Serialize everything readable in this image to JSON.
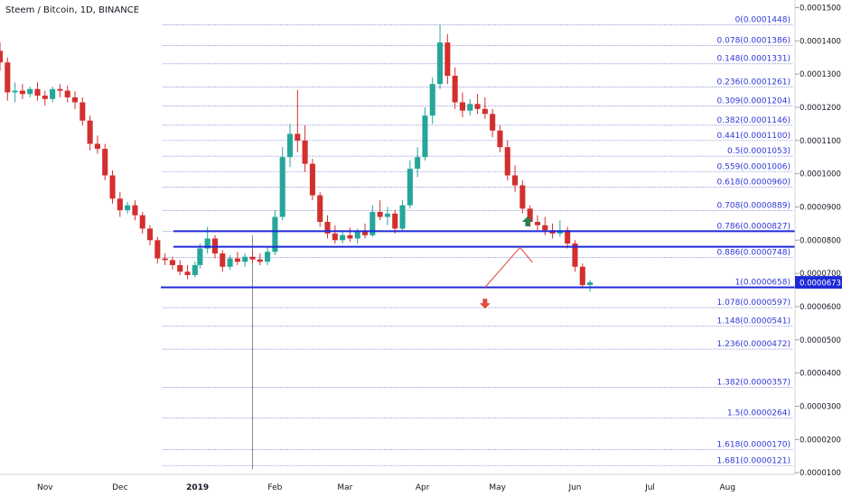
{
  "header": {
    "title": "Steem / Bitcoin, 1D, BINANCE"
  },
  "chart_data": {
    "type": "candlestick",
    "symbol": "Steem / Bitcoin",
    "interval": "1D",
    "exchange": "BINANCE",
    "ylim": [
      9.5e-06,
      0.0001523
    ],
    "y_ticks": [
      "0.0001500",
      "0.0001400",
      "0.0001300",
      "0.0001200",
      "0.0001100",
      "0.0001000",
      "0.0000900",
      "0.0000800",
      "0.0000700",
      "0.0000600",
      "0.0000500",
      "0.0000400",
      "0.0000300",
      "0.0000200",
      "0.0000100"
    ],
    "y_tick_values": [
      0.00015,
      0.00014,
      0.00013,
      0.00012,
      0.00011,
      0.0001,
      9e-05,
      8e-05,
      7e-05,
      6e-05,
      5e-05,
      4e-05,
      3e-05,
      2e-05,
      1e-05
    ],
    "x_labels": [
      "Nov",
      "Dec",
      "2019",
      "Feb",
      "Mar",
      "Apr",
      "May",
      "Jun",
      "Jul",
      "Aug"
    ],
    "x_label_dates": [
      "2018-11-01",
      "2018-12-01",
      "2019-01-01",
      "2019-02-01",
      "2019-03-01",
      "2019-04-01",
      "2019-05-01",
      "2019-06-01",
      "2019-07-01",
      "2019-08-01"
    ],
    "x_range": [
      "2018-10-14",
      "2019-08-28"
    ],
    "current_price": "0.0000673",
    "current_price_value": 6.73e-05,
    "fib_levels": [
      {
        "label": "0(0.0001448)",
        "value": 0.0001448
      },
      {
        "label": "0.078(0.0001386)",
        "value": 0.0001386
      },
      {
        "label": "0.148(0.0001331)",
        "value": 0.0001331
      },
      {
        "label": "0.236(0.0001261)",
        "value": 0.0001261
      },
      {
        "label": "0.309(0.0001204)",
        "value": 0.0001204
      },
      {
        "label": "0.382(0.0001146)",
        "value": 0.0001146
      },
      {
        "label": "0.441(0.0001100)",
        "value": 0.00011
      },
      {
        "label": "0.5(0.0001053)",
        "value": 0.0001053
      },
      {
        "label": "0.559(0.0001006)",
        "value": 0.0001006
      },
      {
        "label": "0.618(0.0000960)",
        "value": 9.6e-05
      },
      {
        "label": "0.708(0.0000889)",
        "value": 8.89e-05
      },
      {
        "label": "0.786(0.0000827)",
        "value": 8.27e-05
      },
      {
        "label": "0.886(0.0000748)",
        "value": 7.48e-05
      },
      {
        "label": "1(0.0000658)",
        "value": 6.58e-05
      },
      {
        "label": "1.078(0.0000597)",
        "value": 5.97e-05
      },
      {
        "label": "1.148(0.0000541)",
        "value": 5.41e-05
      },
      {
        "label": "1.236(0.0000472)",
        "value": 4.72e-05
      },
      {
        "label": "1.382(0.0000357)",
        "value": 3.57e-05
      },
      {
        "label": "1.5(0.0000264)",
        "value": 2.64e-05
      },
      {
        "label": "1.618(0.0000170)",
        "value": 1.7e-05
      },
      {
        "label": "1.681(0.0000121)",
        "value": 1.21e-05
      }
    ],
    "horizontal_levels": [
      8.27e-05,
      7.8e-05,
      6.58e-05
    ],
    "vertical_marker_date": "2019-01-23",
    "projection_path": [
      {
        "date": "2019-04-26",
        "value": 6.58e-05
      },
      {
        "date": "2019-05-10",
        "value": 7.78e-05
      },
      {
        "date": "2019-05-15",
        "value": 7.33e-05
      }
    ],
    "arrows": [
      {
        "direction": "up",
        "date": "2019-05-13",
        "value": 8.55e-05,
        "color": "#2e7d4f"
      },
      {
        "direction": "down",
        "date": "2019-04-26",
        "value": 6.1e-05,
        "color": "#e04b3a"
      }
    ],
    "colors": {
      "up": "#26a69a",
      "down": "#d32f2f",
      "fib_line": "#8a90d8",
      "fib_text": "#2f37d6",
      "level_line": "#1f2ad8",
      "price_badge": "#1f2ad8",
      "projection": "#e04b3a"
    },
    "ohlc": [
      [
        "2018-10-14",
        0.000137,
        0.0001395,
        0.000131,
        0.0001335
      ],
      [
        "2018-10-17",
        0.0001335,
        0.000135,
        0.000122,
        0.0001245
      ],
      [
        "2018-10-20",
        0.0001245,
        0.0001275,
        0.0001215,
        0.000125
      ],
      [
        "2018-10-23",
        0.000125,
        0.000127,
        0.0001225,
        0.000124
      ],
      [
        "2018-10-26",
        0.000124,
        0.0001262,
        0.000123,
        0.0001255
      ],
      [
        "2018-10-29",
        0.0001255,
        0.0001275,
        0.000122,
        0.0001235
      ],
      [
        "2018-11-01",
        0.0001235,
        0.000125,
        0.0001205,
        0.0001225
      ],
      [
        "2018-11-04",
        0.0001225,
        0.0001262,
        0.0001215,
        0.0001255
      ],
      [
        "2018-11-07",
        0.0001255,
        0.000127,
        0.000123,
        0.000125
      ],
      [
        "2018-11-10",
        0.000125,
        0.0001265,
        0.0001215,
        0.000123
      ],
      [
        "2018-11-13",
        0.000123,
        0.0001248,
        0.0001195,
        0.0001215
      ],
      [
        "2018-11-16",
        0.0001215,
        0.000123,
        0.0001145,
        0.000116
      ],
      [
        "2018-11-19",
        0.000116,
        0.0001175,
        0.000107,
        0.000109
      ],
      [
        "2018-11-22",
        0.000109,
        0.0001115,
        0.000106,
        0.0001075
      ],
      [
        "2018-11-25",
        0.0001075,
        0.000109,
        9.8e-05,
        9.95e-05
      ],
      [
        "2018-11-28",
        9.95e-05,
        0.000101,
        9.1e-05,
        9.25e-05
      ],
      [
        "2018-12-01",
        9.25e-05,
        9.45e-05,
        8.7e-05,
        8.9e-05
      ],
      [
        "2018-12-04",
        8.9e-05,
        9.15e-05,
        8.8e-05,
        9.05e-05
      ],
      [
        "2018-12-07",
        9.05e-05,
        9.2e-05,
        8.6e-05,
        8.75e-05
      ],
      [
        "2018-12-10",
        8.75e-05,
        8.85e-05,
        8.2e-05,
        8.35e-05
      ],
      [
        "2018-12-13",
        8.35e-05,
        8.45e-05,
        7.85e-05,
        8e-05
      ],
      [
        "2018-12-16",
        8e-05,
        8.1e-05,
        7.3e-05,
        7.45e-05
      ],
      [
        "2018-12-19",
        7.45e-05,
        7.6e-05,
        7.25e-05,
        7.4e-05
      ],
      [
        "2018-12-22",
        7.4e-05,
        7.5e-05,
        7.12e-05,
        7.25e-05
      ],
      [
        "2018-12-25",
        7.25e-05,
        7.4e-05,
        6.95e-05,
        7.05e-05
      ],
      [
        "2018-12-28",
        7.05e-05,
        7.25e-05,
        6.82e-05,
        6.95e-05
      ],
      [
        "2018-12-31",
        6.95e-05,
        7.35e-05,
        6.88e-05,
        7.25e-05
      ],
      [
        "2019-01-02",
        7.25e-05,
        7.9e-05,
        7.15e-05,
        7.75e-05
      ],
      [
        "2019-01-05",
        7.75e-05,
        8.4e-05,
        7.6e-05,
        8.05e-05
      ],
      [
        "2019-01-08",
        8.05e-05,
        8.15e-05,
        7.45e-05,
        7.6e-05
      ],
      [
        "2019-01-11",
        7.6e-05,
        7.7e-05,
        7.05e-05,
        7.2e-05
      ],
      [
        "2019-01-14",
        7.2e-05,
        7.55e-05,
        7.1e-05,
        7.45e-05
      ],
      [
        "2019-01-17",
        7.45e-05,
        7.65e-05,
        7.25e-05,
        7.35e-05
      ],
      [
        "2019-01-20",
        7.35e-05,
        7.6e-05,
        7.2e-05,
        7.5e-05
      ],
      [
        "2019-01-23",
        7.5e-05,
        7.7e-05,
        7.3e-05,
        7.42e-05
      ],
      [
        "2019-01-26",
        7.42e-05,
        7.6e-05,
        7.25e-05,
        7.35e-05
      ],
      [
        "2019-01-29",
        7.35e-05,
        7.8e-05,
        7.25e-05,
        7.65e-05
      ],
      [
        "2019-02-01",
        7.65e-05,
        8.9e-05,
        7.55e-05,
        8.7e-05
      ],
      [
        "2019-02-04",
        8.7e-05,
        0.000108,
        8.6e-05,
        0.000105
      ],
      [
        "2019-02-07",
        0.000105,
        0.000115,
        0.000102,
        0.000112
      ],
      [
        "2019-02-10",
        0.000112,
        0.0001252,
        0.0001065,
        0.00011
      ],
      [
        "2019-02-13",
        0.00011,
        0.0001145,
        0.0001005,
        0.000103
      ],
      [
        "2019-02-16",
        0.000103,
        0.0001045,
        9.2e-05,
        9.35e-05
      ],
      [
        "2019-02-19",
        9.35e-05,
        9.45e-05,
        8.4e-05,
        8.55e-05
      ],
      [
        "2019-02-22",
        8.55e-05,
        8.75e-05,
        8.05e-05,
        8.2e-05
      ],
      [
        "2019-02-25",
        8.2e-05,
        8.45e-05,
        7.9e-05,
        8e-05
      ],
      [
        "2019-02-28",
        8e-05,
        8.3e-05,
        7.9e-05,
        8.15e-05
      ],
      [
        "2019-03-03",
        8.15e-05,
        8.38e-05,
        7.95e-05,
        8.05e-05
      ],
      [
        "2019-03-06",
        8.05e-05,
        8.35e-05,
        7.9e-05,
        8.25e-05
      ],
      [
        "2019-03-09",
        8.25e-05,
        8.5e-05,
        8.05e-05,
        8.15e-05
      ],
      [
        "2019-03-12",
        8.15e-05,
        9.05e-05,
        8.1e-05,
        8.85e-05
      ],
      [
        "2019-03-15",
        8.85e-05,
        9.2e-05,
        8.6e-05,
        8.7e-05
      ],
      [
        "2019-03-18",
        8.7e-05,
        9e-05,
        8.45e-05,
        8.8e-05
      ],
      [
        "2019-03-21",
        8.8e-05,
        8.9e-05,
        8.2e-05,
        8.35e-05
      ],
      [
        "2019-03-24",
        8.35e-05,
        9.2e-05,
        8.3e-05,
        9.05e-05
      ],
      [
        "2019-03-27",
        9.05e-05,
        0.000104,
        8.95e-05,
        0.0001015
      ],
      [
        "2019-03-30",
        0.0001015,
        0.000108,
        9.9e-05,
        0.000105
      ],
      [
        "2019-04-02",
        0.000105,
        0.00012,
        0.000104,
        0.0001175
      ],
      [
        "2019-04-05",
        0.0001175,
        0.000129,
        0.000115,
        0.000127
      ],
      [
        "2019-04-08",
        0.000127,
        0.0001448,
        0.0001255,
        0.0001395
      ],
      [
        "2019-04-11",
        0.0001395,
        0.000142,
        0.000127,
        0.0001295
      ],
      [
        "2019-04-14",
        0.0001295,
        0.000132,
        0.0001195,
        0.0001215
      ],
      [
        "2019-04-17",
        0.0001215,
        0.0001245,
        0.000117,
        0.000119
      ],
      [
        "2019-04-20",
        0.000119,
        0.0001225,
        0.0001175,
        0.000121
      ],
      [
        "2019-04-23",
        0.000121,
        0.000124,
        0.000118,
        0.0001195
      ],
      [
        "2019-04-26",
        0.0001195,
        0.000123,
        0.0001165,
        0.000118
      ],
      [
        "2019-04-29",
        0.000118,
        0.0001195,
        0.000111,
        0.000113
      ],
      [
        "2019-05-02",
        0.000113,
        0.0001145,
        0.0001065,
        0.000108
      ],
      [
        "2019-05-05",
        0.000108,
        0.00011,
        9.8e-05,
        9.95e-05
      ],
      [
        "2019-05-08",
        9.95e-05,
        0.0001025,
        9.45e-05,
        9.65e-05
      ],
      [
        "2019-05-11",
        9.65e-05,
        9.8e-05,
        8.8e-05,
        8.95e-05
      ],
      [
        "2019-05-14",
        8.95e-05,
        9.05e-05,
        8.4e-05,
        8.55e-05
      ],
      [
        "2019-05-17",
        8.55e-05,
        8.75e-05,
        8.3e-05,
        8.45e-05
      ],
      [
        "2019-05-20",
        8.45e-05,
        8.7e-05,
        8.15e-05,
        8.3e-05
      ],
      [
        "2019-05-23",
        8.3e-05,
        8.5e-05,
        8.05e-05,
        8.2e-05
      ],
      [
        "2019-05-26",
        8.2e-05,
        8.6e-05,
        8.1e-05,
        8.3e-05
      ],
      [
        "2019-05-29",
        8.3e-05,
        8.4e-05,
        7.75e-05,
        7.9e-05
      ],
      [
        "2019-06-01",
        7.9e-05,
        8e-05,
        7.05e-05,
        7.2e-05
      ],
      [
        "2019-06-04",
        7.2e-05,
        7.3e-05,
        6.55e-05,
        6.65e-05
      ],
      [
        "2019-06-07",
        6.65e-05,
        6.8e-05,
        6.45e-05,
        6.73e-05
      ]
    ]
  }
}
